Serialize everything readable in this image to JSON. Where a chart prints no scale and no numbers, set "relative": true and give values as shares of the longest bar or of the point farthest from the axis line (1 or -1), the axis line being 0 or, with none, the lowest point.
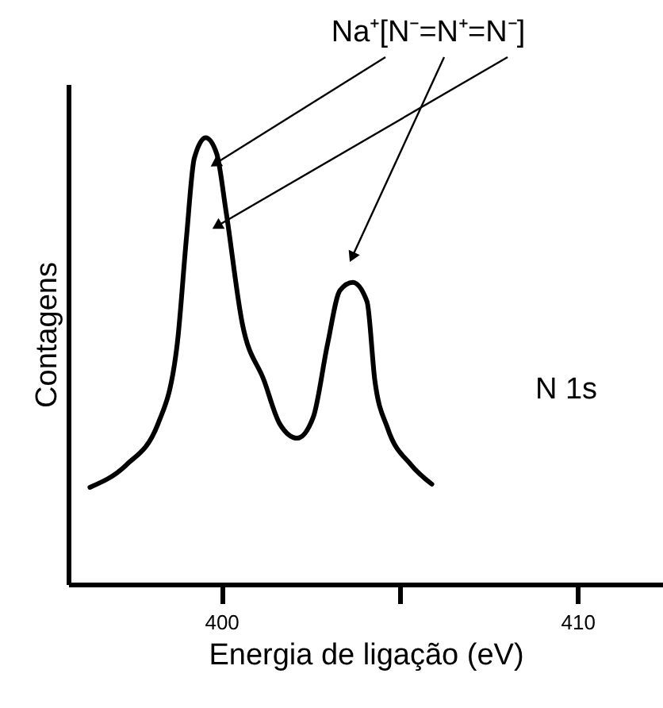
{
  "chart_data": {
    "type": "line",
    "relative": true,
    "xlabel": "Energia de ligação (eV)",
    "ylabel": "Contagens",
    "xlim": [
      395.7,
      412.4
    ],
    "xticks": [
      400,
      {
        "value": 405,
        "label": null
      },
      410
    ],
    "grid": false,
    "marker": "none",
    "line_style": "solid",
    "x": [
      396.31,
      397.33,
      398.22,
      398.76,
      399.02,
      399.24,
      399.56,
      399.87,
      400.13,
      400.58,
      401.2,
      401.64,
      402.13,
      402.58,
      402.98,
      403.33,
      403.69,
      404.09,
      404.31,
      404.67,
      405.33,
      405.91
    ],
    "series": [
      {
        "color": "#000000",
        "values": [
          0.217,
          0.267,
          0.359,
          0.537,
          0.776,
          0.954,
          1,
          0.964,
          0.836,
          0.587,
          0.456,
          0.359,
          0.327,
          0.374,
          0.537,
          0.658,
          0.676,
          0.633,
          0.456,
          0.349,
          0.267,
          0.224
        ]
      }
    ],
    "annotations": [
      "Na⁺[N⁻=N⁺=N⁻]",
      "N 1s"
    ]
  }
}
